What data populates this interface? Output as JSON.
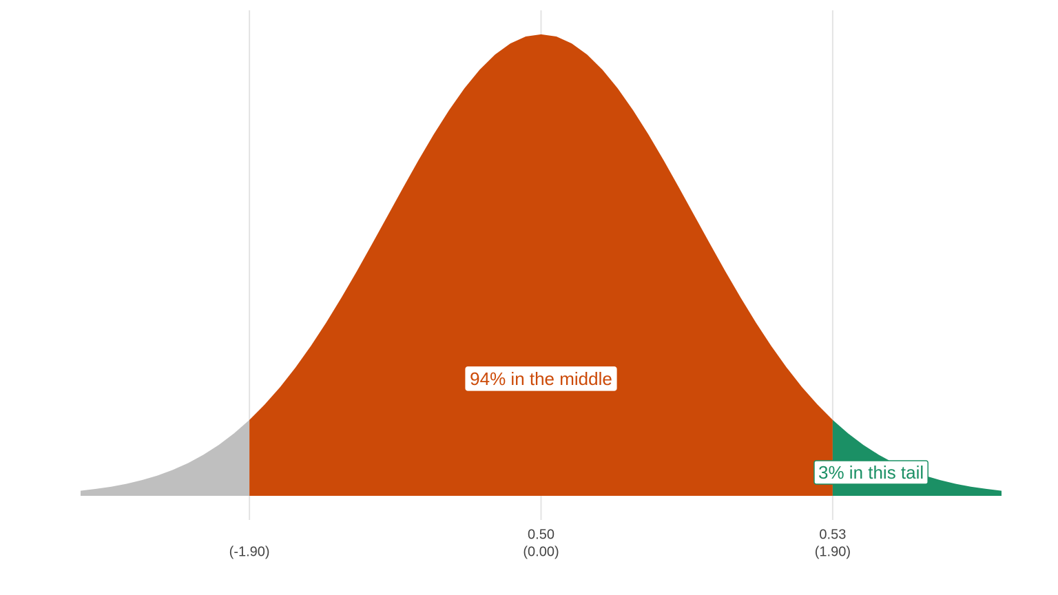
{
  "chart_data": {
    "type": "area",
    "xlim": [
      -3,
      3
    ],
    "ylim": [
      0,
      0.4
    ],
    "xticks": [
      {
        "value": -1.9,
        "label": "(-1.90)"
      },
      {
        "value": 0,
        "label": "(0.00)"
      },
      {
        "value": 1.9,
        "label": "(1.90)"
      }
    ],
    "xticks_raw": [
      {
        "value": 0,
        "label": "0.50"
      },
      {
        "value": 1.9,
        "label": "0.53"
      }
    ],
    "grid": true,
    "series": [
      {
        "color": "#bfbfbf",
        "x": [
          -3.0,
          -2.9,
          -2.8,
          -2.7,
          -2.6,
          -2.5,
          -2.4,
          -2.3,
          -2.2,
          -2.1,
          -2.0,
          -1.9
        ],
        "values": [
          0.0044,
          0.006,
          0.0079,
          0.0104,
          0.0136,
          0.0175,
          0.0224,
          0.0283,
          0.0355,
          0.044,
          0.054,
          0.0656
        ]
      },
      {
        "color": "#cc4a08",
        "x": [
          -1.9,
          -1.8,
          -1.7,
          -1.6,
          -1.5,
          -1.4,
          -1.3,
          -1.2,
          -1.1,
          -1.0,
          -0.9,
          -0.8,
          -0.7,
          -0.6,
          -0.5,
          -0.4,
          -0.3,
          -0.2,
          -0.1,
          0,
          0.1,
          0.2,
          0.3,
          0.4,
          0.5,
          0.6,
          0.7,
          0.8,
          0.9,
          1.0,
          1.1,
          1.2,
          1.3,
          1.4,
          1.5,
          1.6,
          1.7,
          1.8,
          1.9
        ],
        "values": [
          0.0656,
          0.079,
          0.094,
          0.1109,
          0.1295,
          0.1497,
          0.1714,
          0.1942,
          0.2179,
          0.242,
          0.2661,
          0.2897,
          0.3123,
          0.3332,
          0.3521,
          0.3683,
          0.3814,
          0.391,
          0.397,
          0.3989,
          0.397,
          0.391,
          0.3814,
          0.3683,
          0.3521,
          0.3332,
          0.3123,
          0.2897,
          0.2661,
          0.242,
          0.2179,
          0.1942,
          0.1714,
          0.1497,
          0.1295,
          0.1109,
          0.094,
          0.079,
          0.0656
        ]
      },
      {
        "color": "#1b9065",
        "x": [
          1.9,
          2.0,
          2.1,
          2.2,
          2.3,
          2.4,
          2.5,
          2.6,
          2.7,
          2.8,
          2.9,
          3.0
        ],
        "values": [
          0.0656,
          0.054,
          0.044,
          0.0355,
          0.0283,
          0.0224,
          0.0175,
          0.0136,
          0.0104,
          0.0079,
          0.006,
          0.0044
        ]
      }
    ],
    "annotations": [
      {
        "text": "94% in the middle",
        "x": 0,
        "y": 0.1,
        "color": "#cc4a08",
        "border": "#ffffff"
      },
      {
        "text": "3% in this tail",
        "x": 2.15,
        "y": 0.019,
        "color": "#1b9065",
        "border": "#1b9065"
      }
    ]
  }
}
